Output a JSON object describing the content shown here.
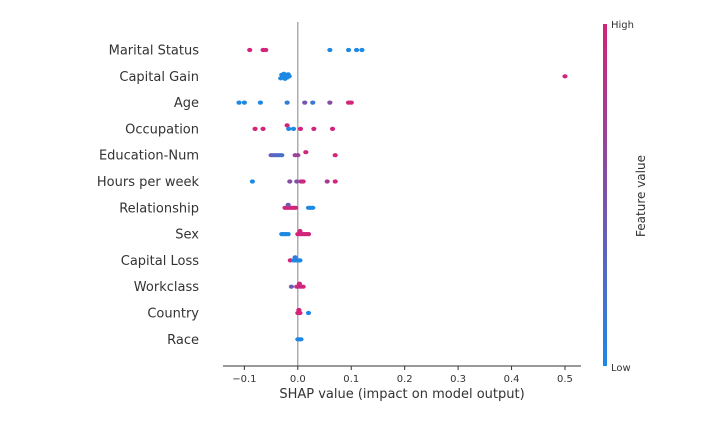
{
  "chart_data": {
    "type": "scatter",
    "title": "",
    "xlabel": "SHAP value (impact on model output)",
    "ylabel": "",
    "xlim": [
      -0.14,
      0.53
    ],
    "xticks": [
      -0.1,
      0.0,
      0.1,
      0.2,
      0.3,
      0.4,
      0.5
    ],
    "xtick_labels": [
      "−0.1",
      "0.0",
      "0.1",
      "0.2",
      "0.3",
      "0.4",
      "0.5"
    ],
    "grid": false,
    "colorbar": {
      "title": "Feature value",
      "high_label": "High",
      "low_label": "Low",
      "high_color": "#d1247a",
      "low_color": "#1e88e5"
    },
    "features": [
      {
        "name": "Marital Status",
        "points": [
          {
            "x": -0.09,
            "v": 1.0,
            "j": 0
          },
          {
            "x": -0.065,
            "v": 1.0,
            "j": 0
          },
          {
            "x": -0.06,
            "v": 1.0,
            "j": 0
          },
          {
            "x": 0.06,
            "v": 0.0,
            "j": 0
          },
          {
            "x": 0.095,
            "v": 0.0,
            "j": 0
          },
          {
            "x": 0.11,
            "v": 0.0,
            "j": 0
          },
          {
            "x": 0.12,
            "v": 0.0,
            "j": 0
          }
        ]
      },
      {
        "name": "Capital Gain",
        "points": [
          {
            "x": -0.032,
            "v": 0.0,
            "j": -0.4
          },
          {
            "x": -0.03,
            "v": 0.0,
            "j": 0.3
          },
          {
            "x": -0.028,
            "v": 0.0,
            "j": -0.15
          },
          {
            "x": -0.026,
            "v": 0.0,
            "j": 0.5
          },
          {
            "x": -0.025,
            "v": 0.0,
            "j": 0
          },
          {
            "x": -0.024,
            "v": 0.0,
            "j": -0.5
          },
          {
            "x": -0.022,
            "v": 0.0,
            "j": 0.2
          },
          {
            "x": -0.02,
            "v": 0.0,
            "j": -0.25
          },
          {
            "x": -0.018,
            "v": 0.0,
            "j": 0.4
          },
          {
            "x": -0.016,
            "v": 0.0,
            "j": 0
          },
          {
            "x": 0.5,
            "v": 1.0,
            "j": 0
          }
        ]
      },
      {
        "name": "Age",
        "points": [
          {
            "x": -0.11,
            "v": 0.0,
            "j": 0
          },
          {
            "x": -0.1,
            "v": 0.0,
            "j": 0
          },
          {
            "x": -0.07,
            "v": 0.0,
            "j": 0
          },
          {
            "x": -0.02,
            "v": 0.1,
            "j": 0
          },
          {
            "x": 0.013,
            "v": 0.45,
            "j": 0
          },
          {
            "x": 0.028,
            "v": 0.15,
            "j": 0
          },
          {
            "x": 0.06,
            "v": 0.55,
            "j": 0
          },
          {
            "x": 0.095,
            "v": 1.0,
            "j": 0
          },
          {
            "x": 0.1,
            "v": 1.0,
            "j": 0
          }
        ]
      },
      {
        "name": "Occupation",
        "points": [
          {
            "x": -0.08,
            "v": 1.0,
            "j": 0
          },
          {
            "x": -0.065,
            "v": 1.0,
            "j": 0
          },
          {
            "x": -0.02,
            "v": 1.0,
            "j": 0.7
          },
          {
            "x": -0.017,
            "v": 0.0,
            "j": 0
          },
          {
            "x": -0.008,
            "v": 0.0,
            "j": 0
          },
          {
            "x": 0.005,
            "v": 1.0,
            "j": 0
          },
          {
            "x": 0.03,
            "v": 1.0,
            "j": 0
          },
          {
            "x": 0.065,
            "v": 1.0,
            "j": 0
          }
        ]
      },
      {
        "name": "Education-Num",
        "points": [
          {
            "x": -0.05,
            "v": 0.4,
            "j": 0
          },
          {
            "x": -0.046,
            "v": 0.35,
            "j": 0
          },
          {
            "x": -0.042,
            "v": 0.3,
            "j": 0
          },
          {
            "x": -0.038,
            "v": 0.25,
            "j": 0
          },
          {
            "x": -0.034,
            "v": 0.3,
            "j": 0
          },
          {
            "x": -0.03,
            "v": 0.2,
            "j": 0
          },
          {
            "x": -0.005,
            "v": 0.65,
            "j": 0
          },
          {
            "x": 0.0,
            "v": 0.7,
            "j": 0
          },
          {
            "x": 0.015,
            "v": 1.0,
            "j": 0.6
          },
          {
            "x": 0.07,
            "v": 1.0,
            "j": 0
          }
        ]
      },
      {
        "name": "Hours per week",
        "points": [
          {
            "x": -0.085,
            "v": 0.0,
            "j": 0
          },
          {
            "x": -0.015,
            "v": 0.55,
            "j": 0
          },
          {
            "x": -0.002,
            "v": 0.5,
            "j": 0
          },
          {
            "x": 0.006,
            "v": 0.9,
            "j": 0
          },
          {
            "x": 0.01,
            "v": 0.95,
            "j": 0
          },
          {
            "x": 0.055,
            "v": 0.75,
            "j": 0
          },
          {
            "x": 0.07,
            "v": 1.0,
            "j": 0
          }
        ]
      },
      {
        "name": "Relationship",
        "points": [
          {
            "x": -0.024,
            "v": 1.0,
            "j": 0
          },
          {
            "x": -0.02,
            "v": 1.0,
            "j": 0
          },
          {
            "x": -0.016,
            "v": 1.0,
            "j": 0
          },
          {
            "x": -0.012,
            "v": 1.0,
            "j": 0
          },
          {
            "x": -0.008,
            "v": 1.0,
            "j": 0
          },
          {
            "x": -0.004,
            "v": 1.0,
            "j": 0
          },
          {
            "x": -0.018,
            "v": 0.45,
            "j": 0.6
          },
          {
            "x": 0.02,
            "v": 0.0,
            "j": 0
          },
          {
            "x": 0.024,
            "v": 0.0,
            "j": 0
          },
          {
            "x": 0.028,
            "v": 0.0,
            "j": 0
          }
        ]
      },
      {
        "name": "Sex",
        "points": [
          {
            "x": -0.03,
            "v": 0.0,
            "j": 0
          },
          {
            "x": -0.026,
            "v": 0.0,
            "j": 0
          },
          {
            "x": -0.022,
            "v": 0.0,
            "j": 0
          },
          {
            "x": -0.018,
            "v": 0.0,
            "j": 0
          },
          {
            "x": 0.0,
            "v": 1.0,
            "j": 0
          },
          {
            "x": 0.004,
            "v": 1.0,
            "j": 0
          },
          {
            "x": 0.008,
            "v": 1.0,
            "j": 0
          },
          {
            "x": 0.012,
            "v": 1.0,
            "j": 0
          },
          {
            "x": 0.016,
            "v": 1.0,
            "j": 0
          },
          {
            "x": 0.02,
            "v": 1.0,
            "j": 0
          },
          {
            "x": 0.004,
            "v": 1.0,
            "j": 0.6
          }
        ]
      },
      {
        "name": "Capital Loss",
        "points": [
          {
            "x": -0.014,
            "v": 1.0,
            "j": 0
          },
          {
            "x": -0.008,
            "v": 0.0,
            "j": 0
          },
          {
            "x": -0.004,
            "v": 0.0,
            "j": 0
          },
          {
            "x": 0.0,
            "v": 0.0,
            "j": 0
          },
          {
            "x": 0.004,
            "v": 0.0,
            "j": 0
          },
          {
            "x": -0.005,
            "v": 0.1,
            "j": 0.6
          }
        ]
      },
      {
        "name": "Workclass",
        "points": [
          {
            "x": -0.012,
            "v": 0.4,
            "j": 0
          },
          {
            "x": -0.002,
            "v": 0.85,
            "j": 0
          },
          {
            "x": 0.002,
            "v": 1.0,
            "j": 0
          },
          {
            "x": 0.006,
            "v": 0.9,
            "j": 0
          },
          {
            "x": 0.01,
            "v": 1.0,
            "j": 0
          },
          {
            "x": 0.003,
            "v": 1.0,
            "j": 0.6
          }
        ]
      },
      {
        "name": "Country",
        "points": [
          {
            "x": 0.0,
            "v": 1.0,
            "j": 0
          },
          {
            "x": 0.004,
            "v": 1.0,
            "j": 0
          },
          {
            "x": 0.002,
            "v": 1.0,
            "j": 0.6
          },
          {
            "x": 0.02,
            "v": 0.0,
            "j": 0
          }
        ]
      },
      {
        "name": "Race",
        "points": [
          {
            "x": 0.0,
            "v": 0.0,
            "j": 0
          },
          {
            "x": 0.003,
            "v": 0.0,
            "j": 0
          },
          {
            "x": 0.006,
            "v": 0.0,
            "j": 0
          }
        ]
      }
    ]
  }
}
